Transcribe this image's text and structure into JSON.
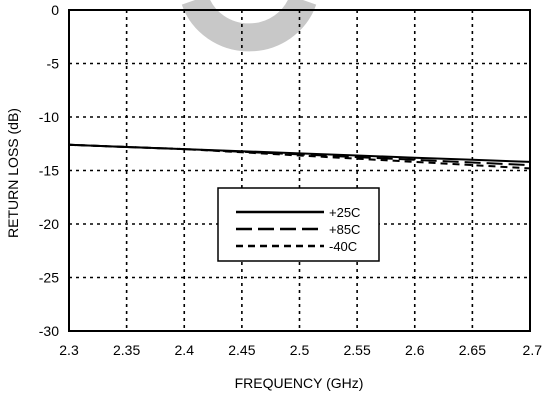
{
  "chart_data": {
    "type": "line",
    "title": "",
    "xlabel": "FREQUENCY (GHz)",
    "ylabel": "RETURN LOSS (dB)",
    "xlim": [
      2.3,
      2.7
    ],
    "ylim": [
      -30,
      0
    ],
    "xticks": [
      2.3,
      2.35,
      2.4,
      2.45,
      2.5,
      2.55,
      2.6,
      2.65,
      2.7
    ],
    "xtick_labels": [
      "2.3",
      "2.35",
      "2.4",
      "2.45",
      "2.5",
      "2.55",
      "2.6",
      "2.65",
      "2.7"
    ],
    "yticks": [
      0,
      -5,
      -10,
      -15,
      -20,
      -25,
      -30
    ],
    "ytick_labels": [
      "0",
      "-5",
      "-10",
      "-15",
      "-20",
      "-25",
      "-30"
    ],
    "grid": true,
    "legend_position": "lower-center",
    "series": [
      {
        "name": "+25C",
        "style": "solid",
        "x": [
          2.3,
          2.35,
          2.4,
          2.45,
          2.5,
          2.55,
          2.6,
          2.65,
          2.7
        ],
        "y": [
          -12.6,
          -12.8,
          -13.0,
          -13.2,
          -13.4,
          -13.6,
          -13.8,
          -14.0,
          -14.2
        ]
      },
      {
        "name": "+85C",
        "style": "long-dash",
        "x": [
          2.3,
          2.35,
          2.4,
          2.45,
          2.5,
          2.55,
          2.6,
          2.65,
          2.7
        ],
        "y": [
          -12.6,
          -12.8,
          -13.0,
          -13.25,
          -13.5,
          -13.75,
          -14.0,
          -14.25,
          -14.5
        ]
      },
      {
        "name": "-40C",
        "style": "short-dash",
        "x": [
          2.3,
          2.35,
          2.4,
          2.45,
          2.5,
          2.55,
          2.6,
          2.65,
          2.7
        ],
        "y": [
          -12.6,
          -12.8,
          -13.0,
          -13.3,
          -13.6,
          -13.9,
          -14.2,
          -14.5,
          -14.8
        ]
      }
    ]
  },
  "colors": {
    "watermark": "#c8c8c8",
    "line": "#000000"
  }
}
